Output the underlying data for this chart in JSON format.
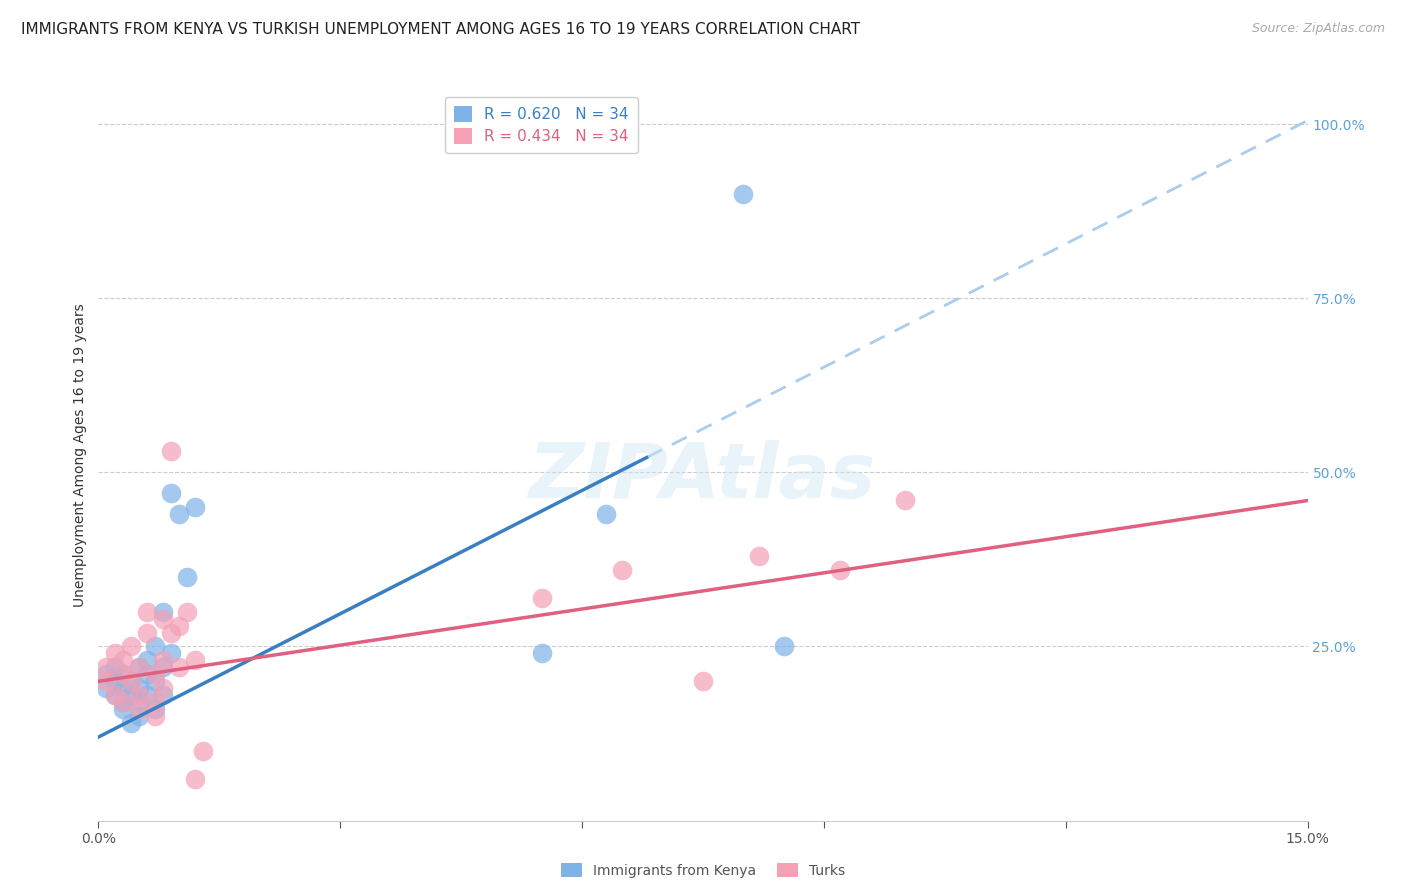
{
  "title": "IMMIGRANTS FROM KENYA VS TURKISH UNEMPLOYMENT AMONG AGES 16 TO 19 YEARS CORRELATION CHART",
  "source": "Source: ZipAtlas.com",
  "ylabel": "Unemployment Among Ages 16 to 19 years",
  "ylabel_right_ticks": [
    "100.0%",
    "75.0%",
    "50.0%",
    "25.0%"
  ],
  "xlim": [
    0.0,
    0.15
  ],
  "ylim": [
    0.0,
    1.05
  ],
  "right_yticks": [
    1.0,
    0.75,
    0.5,
    0.25
  ],
  "legend_kenya_R": "0.620",
  "legend_kenya_N": "34",
  "legend_turks_R": "0.434",
  "legend_turks_N": "34",
  "kenya_color": "#7FB3E8",
  "turks_color": "#F4A0B5",
  "kenya_line_color": "#3a7fc1",
  "turks_line_color": "#e06080",
  "dashed_line_color": "#aaccee",
  "background_color": "#ffffff",
  "watermark": "ZIPAtlas",
  "kenya_x": [
    0.001,
    0.001,
    0.002,
    0.002,
    0.002,
    0.003,
    0.003,
    0.003,
    0.003,
    0.004,
    0.004,
    0.004,
    0.005,
    0.005,
    0.005,
    0.005,
    0.006,
    0.006,
    0.006,
    0.007,
    0.007,
    0.007,
    0.008,
    0.008,
    0.008,
    0.009,
    0.009,
    0.01,
    0.011,
    0.012,
    0.055,
    0.063,
    0.08,
    0.085
  ],
  "kenya_y": [
    0.19,
    0.21,
    0.18,
    0.2,
    0.22,
    0.17,
    0.19,
    0.21,
    0.16,
    0.18,
    0.2,
    0.14,
    0.19,
    0.17,
    0.22,
    0.15,
    0.21,
    0.18,
    0.23,
    0.2,
    0.16,
    0.25,
    0.18,
    0.3,
    0.22,
    0.47,
    0.24,
    0.44,
    0.35,
    0.45,
    0.24,
    0.44,
    0.9,
    0.25
  ],
  "turks_x": [
    0.001,
    0.001,
    0.002,
    0.002,
    0.003,
    0.003,
    0.003,
    0.004,
    0.004,
    0.005,
    0.005,
    0.005,
    0.006,
    0.006,
    0.007,
    0.007,
    0.007,
    0.008,
    0.008,
    0.008,
    0.009,
    0.009,
    0.01,
    0.01,
    0.011,
    0.012,
    0.012,
    0.013,
    0.055,
    0.065,
    0.075,
    0.082,
    0.092,
    0.1
  ],
  "turks_y": [
    0.2,
    0.22,
    0.18,
    0.24,
    0.17,
    0.21,
    0.23,
    0.2,
    0.25,
    0.18,
    0.22,
    0.16,
    0.27,
    0.3,
    0.21,
    0.17,
    0.15,
    0.29,
    0.23,
    0.19,
    0.53,
    0.27,
    0.28,
    0.22,
    0.3,
    0.23,
    0.06,
    0.1,
    0.32,
    0.36,
    0.2,
    0.38,
    0.36,
    0.46
  ],
  "title_fontsize": 11,
  "source_fontsize": 9,
  "axis_label_fontsize": 10,
  "legend_fontsize": 11,
  "tick_fontsize": 10
}
